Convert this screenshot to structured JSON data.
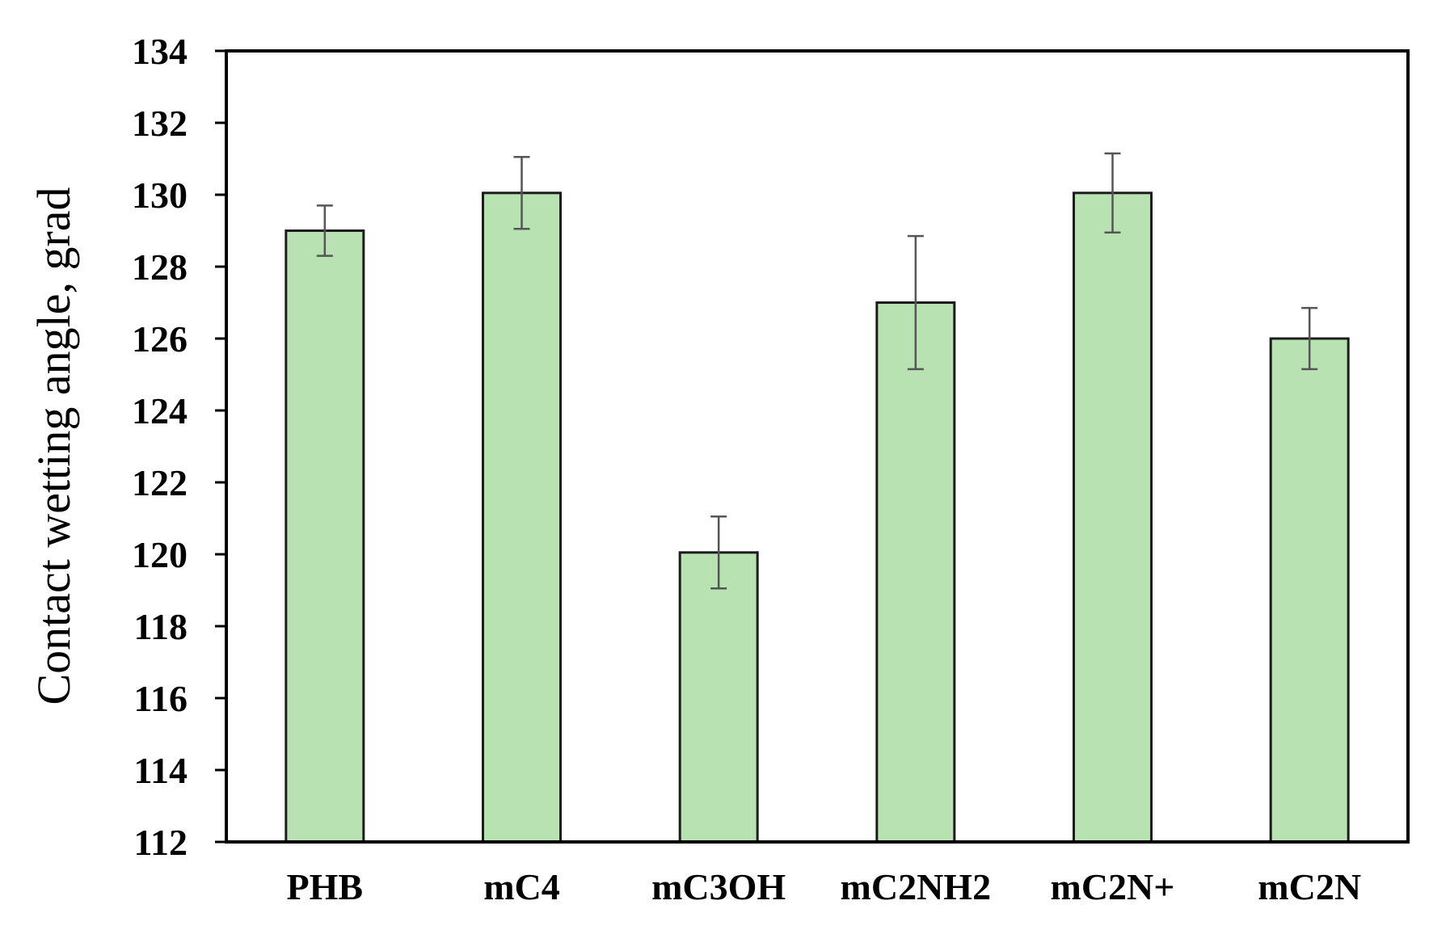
{
  "chart_data": {
    "type": "bar",
    "title": "",
    "xlabel": "",
    "ylabel": "Contact wetting angle, grad",
    "categories": [
      "PHB",
      "mC4",
      "mC3OH",
      "mC2NH2",
      "mC2N+",
      "mC2N"
    ],
    "values": [
      129.0,
      130.05,
      120.05,
      127.0,
      130.05,
      126.0
    ],
    "errors": [
      0.7,
      1.0,
      1.0,
      1.85,
      1.1,
      0.85
    ],
    "ylim": [
      112,
      134
    ],
    "yticks": [
      112,
      114,
      116,
      118,
      120,
      122,
      124,
      126,
      128,
      130,
      132,
      134
    ],
    "grid": false,
    "legend": "none",
    "colors": {
      "bar_fill": "#b9e2b2",
      "bar_stroke": "#1c1c1c",
      "axis": "#000000",
      "error_bar": "#555555"
    }
  }
}
